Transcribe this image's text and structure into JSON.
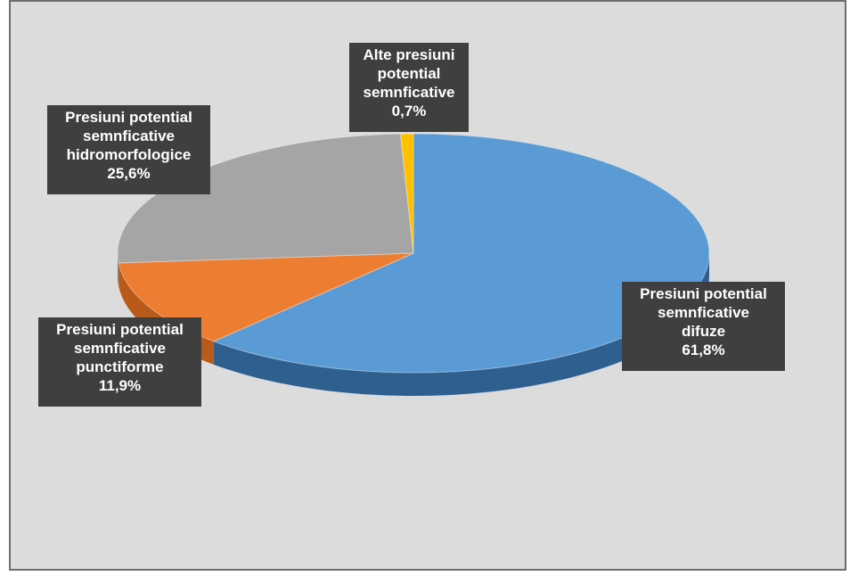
{
  "chart_data": {
    "type": "pie",
    "style": "3d-pie",
    "legend": "none",
    "slices": [
      {
        "label": "Presiuni potential semnficative difuze",
        "value": 61.8,
        "value_label": "61,8%",
        "color": "#5b9bd5",
        "side_color": "#2e5f8f"
      },
      {
        "label": "Presiuni potential semnficative punctiforme",
        "value": 11.9,
        "value_label": "11,9%",
        "color": "#ed7d31",
        "side_color": "#b85a1a"
      },
      {
        "label": "Presiuni potential semnficative hidromorfologice",
        "value": 25.6,
        "value_label": "25,6%",
        "color": "#a5a5a5",
        "side_color": "#7a7a7a"
      },
      {
        "label": "Alte presiuni potential semnficative",
        "value": 0.7,
        "value_label": "0,7%",
        "color": "#ffc000",
        "side_color": "#c99700"
      }
    ]
  },
  "labels": {
    "difuze": [
      "Presiuni potential",
      "semnficative",
      "difuze",
      "61,8%"
    ],
    "punctiforme": [
      "Presiuni potential",
      "semnficative",
      "punctiforme",
      "11,9%"
    ],
    "hidromorfologice": [
      "Presiuni potential",
      "semnficative",
      "hidromorfologice",
      "25,6%"
    ],
    "alte": [
      "Alte presiuni",
      "potential",
      "semnficative",
      "0,7%"
    ]
  }
}
